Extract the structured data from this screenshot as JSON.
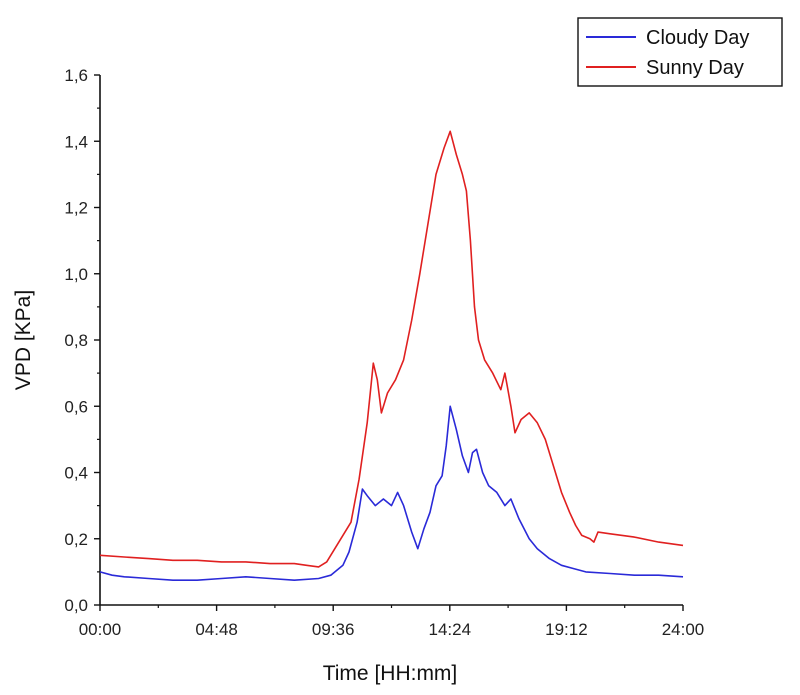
{
  "chart_data": {
    "type": "line",
    "title": "",
    "xlabel": "Time [HH:mm]",
    "ylabel": "VPD [KPa]",
    "xlim": [
      "00:00",
      "24:00"
    ],
    "ylim": [
      0,
      1.6
    ],
    "x_ticks": [
      "00:00",
      "04:48",
      "09:36",
      "14:24",
      "19:12",
      "24:00"
    ],
    "y_ticks": [
      "0,0",
      "0,2",
      "0,4",
      "0,6",
      "0,8",
      "1,0",
      "1,2",
      "1,4",
      "1,6"
    ],
    "grid": false,
    "legend_position": "top-right",
    "series": [
      {
        "name": "Cloudy Day",
        "color": "#2a2ad8",
        "points": [
          [
            "00:00",
            0.1
          ],
          [
            "00:30",
            0.09
          ],
          [
            "01:00",
            0.085
          ],
          [
            "02:00",
            0.08
          ],
          [
            "03:00",
            0.075
          ],
          [
            "04:00",
            0.075
          ],
          [
            "05:00",
            0.08
          ],
          [
            "06:00",
            0.085
          ],
          [
            "07:00",
            0.08
          ],
          [
            "08:00",
            0.075
          ],
          [
            "09:00",
            0.08
          ],
          [
            "09:30",
            0.09
          ],
          [
            "10:00",
            0.12
          ],
          [
            "10:15",
            0.16
          ],
          [
            "10:35",
            0.25
          ],
          [
            "10:48",
            0.35
          ],
          [
            "11:00",
            0.33
          ],
          [
            "11:20",
            0.3
          ],
          [
            "11:40",
            0.32
          ],
          [
            "12:00",
            0.3
          ],
          [
            "12:15",
            0.34
          ],
          [
            "12:30",
            0.3
          ],
          [
            "12:50",
            0.22
          ],
          [
            "13:05",
            0.17
          ],
          [
            "13:20",
            0.23
          ],
          [
            "13:35",
            0.28
          ],
          [
            "13:50",
            0.36
          ],
          [
            "14:05",
            0.39
          ],
          [
            "14:15",
            0.48
          ],
          [
            "14:25",
            0.6
          ],
          [
            "14:40",
            0.53
          ],
          [
            "14:55",
            0.45
          ],
          [
            "15:10",
            0.4
          ],
          [
            "15:20",
            0.46
          ],
          [
            "15:30",
            0.47
          ],
          [
            "15:45",
            0.4
          ],
          [
            "16:00",
            0.36
          ],
          [
            "16:20",
            0.34
          ],
          [
            "16:40",
            0.3
          ],
          [
            "16:55",
            0.32
          ],
          [
            "17:15",
            0.26
          ],
          [
            "17:40",
            0.2
          ],
          [
            "18:00",
            0.17
          ],
          [
            "18:30",
            0.14
          ],
          [
            "19:00",
            0.12
          ],
          [
            "19:30",
            0.11
          ],
          [
            "20:00",
            0.1
          ],
          [
            "21:00",
            0.095
          ],
          [
            "22:00",
            0.09
          ],
          [
            "23:00",
            0.09
          ],
          [
            "24:00",
            0.085
          ]
        ]
      },
      {
        "name": "Sunny Day",
        "color": "#e02020",
        "points": [
          [
            "00:00",
            0.15
          ],
          [
            "01:00",
            0.145
          ],
          [
            "02:00",
            0.14
          ],
          [
            "03:00",
            0.135
          ],
          [
            "04:00",
            0.135
          ],
          [
            "05:00",
            0.13
          ],
          [
            "06:00",
            0.13
          ],
          [
            "07:00",
            0.125
          ],
          [
            "08:00",
            0.125
          ],
          [
            "08:30",
            0.12
          ],
          [
            "09:00",
            0.115
          ],
          [
            "09:20",
            0.13
          ],
          [
            "09:40",
            0.17
          ],
          [
            "10:00",
            0.21
          ],
          [
            "10:20",
            0.25
          ],
          [
            "10:40",
            0.38
          ],
          [
            "11:00",
            0.55
          ],
          [
            "11:15",
            0.73
          ],
          [
            "11:25",
            0.68
          ],
          [
            "11:35",
            0.58
          ],
          [
            "11:50",
            0.64
          ],
          [
            "12:10",
            0.68
          ],
          [
            "12:30",
            0.74
          ],
          [
            "12:50",
            0.86
          ],
          [
            "13:10",
            1.0
          ],
          [
            "13:30",
            1.15
          ],
          [
            "13:50",
            1.3
          ],
          [
            "14:10",
            1.38
          ],
          [
            "14:25",
            1.43
          ],
          [
            "14:40",
            1.36
          ],
          [
            "14:55",
            1.3
          ],
          [
            "15:05",
            1.25
          ],
          [
            "15:15",
            1.1
          ],
          [
            "15:25",
            0.9
          ],
          [
            "15:35",
            0.8
          ],
          [
            "15:50",
            0.74
          ],
          [
            "16:10",
            0.7
          ],
          [
            "16:30",
            0.65
          ],
          [
            "16:40",
            0.7
          ],
          [
            "16:55",
            0.6
          ],
          [
            "17:05",
            0.52
          ],
          [
            "17:20",
            0.56
          ],
          [
            "17:40",
            0.58
          ],
          [
            "18:00",
            0.55
          ],
          [
            "18:20",
            0.5
          ],
          [
            "18:40",
            0.42
          ],
          [
            "19:00",
            0.34
          ],
          [
            "19:20",
            0.28
          ],
          [
            "19:35",
            0.24
          ],
          [
            "19:50",
            0.21
          ],
          [
            "20:10",
            0.2
          ],
          [
            "20:20",
            0.19
          ],
          [
            "20:30",
            0.22
          ],
          [
            "21:00",
            0.215
          ],
          [
            "22:00",
            0.205
          ],
          [
            "23:00",
            0.19
          ],
          [
            "24:00",
            0.18
          ]
        ]
      }
    ]
  }
}
